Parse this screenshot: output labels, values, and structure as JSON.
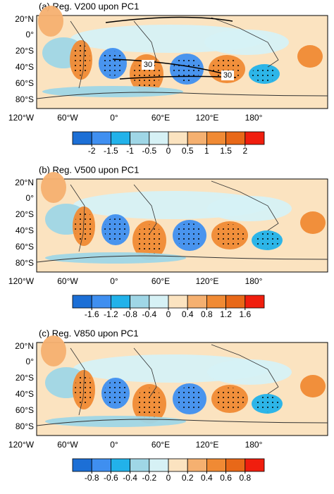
{
  "panels": [
    {
      "title": "(a) Reg. V200 upon PC1",
      "lat_labels": [
        "20°N",
        "0°",
        "20°S",
        "40°S",
        "60°S",
        "80°S"
      ],
      "lon_labels": [
        "120°W",
        "60°W",
        "0°",
        "60°E",
        "120°E",
        "180°"
      ],
      "contour_labels": [
        "30",
        "30"
      ],
      "colorbar": {
        "colors": [
          "#1c6fd6",
          "#3f8ff0",
          "#22b2ea",
          "#9fd6e6",
          "#d6f1f5",
          "#fbe3c0",
          "#f5b070",
          "#f08a34",
          "#e86818",
          "#f01e0e"
        ],
        "ticks": [
          -2,
          -1.5,
          -1,
          -0.5,
          0,
          0.5,
          1,
          1.5,
          2
        ]
      }
    },
    {
      "title": "(b) Reg. V500 upon PC1",
      "lat_labels": [
        "20°N",
        "0°",
        "20°S",
        "40°S",
        "60°S",
        "80°S"
      ],
      "lon_labels": [
        "120°W",
        "60°W",
        "0°",
        "60°E",
        "120°E",
        "180°"
      ],
      "colorbar": {
        "colors": [
          "#1c6fd6",
          "#3f8ff0",
          "#22b2ea",
          "#9fd6e6",
          "#d6f1f5",
          "#fbe3c0",
          "#f5b070",
          "#f08a34",
          "#e86818",
          "#f01e0e"
        ],
        "ticks": [
          -1.6,
          -1.2,
          -0.8,
          -0.4,
          0,
          0.4,
          0.8,
          1.2,
          1.6
        ]
      }
    },
    {
      "title": "(c) Reg. V850 upon PC1",
      "lat_labels": [
        "20°N",
        "0°",
        "20°S",
        "40°S",
        "60°S",
        "80°S"
      ],
      "lon_labels": [
        "120°W",
        "60°W",
        "0°",
        "60°E",
        "120°E",
        "180°"
      ],
      "colorbar": {
        "colors": [
          "#1c6fd6",
          "#3f8ff0",
          "#22b2ea",
          "#9fd6e6",
          "#d6f1f5",
          "#fbe3c0",
          "#f5b070",
          "#f08a34",
          "#e86818",
          "#f01e0e"
        ],
        "ticks": [
          -0.8,
          -0.6,
          -0.4,
          -0.2,
          0,
          0.2,
          0.4,
          0.6,
          0.8
        ]
      }
    }
  ]
}
